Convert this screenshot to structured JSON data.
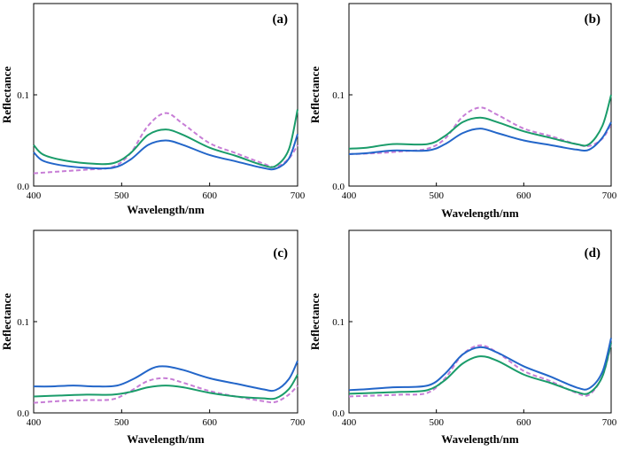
{
  "chart_data": [
    {
      "type": "line",
      "title": "(a)",
      "xlabel": "Wavelength/nm",
      "ylabel": "Reflectance",
      "xlim": [
        400,
        700
      ],
      "ylim": [
        0,
        0.2
      ],
      "xticks": [
        400,
        500,
        600,
        700
      ],
      "yticks": [
        0.0,
        0.1
      ],
      "grid": false,
      "series": [
        {
          "name": "dashed",
          "color": "#c77dd6",
          "dash": true,
          "x": [
            400,
            430,
            460,
            490,
            510,
            530,
            550,
            570,
            600,
            630,
            660,
            675,
            690,
            700
          ],
          "y": [
            0.014,
            0.016,
            0.018,
            0.021,
            0.036,
            0.066,
            0.08,
            0.068,
            0.047,
            0.036,
            0.025,
            0.021,
            0.03,
            0.045
          ]
        },
        {
          "name": "green",
          "color": "#1a9c6a",
          "dash": false,
          "x": [
            400,
            410,
            430,
            460,
            490,
            510,
            530,
            550,
            570,
            600,
            630,
            660,
            675,
            690,
            700
          ],
          "y": [
            0.045,
            0.035,
            0.029,
            0.025,
            0.025,
            0.036,
            0.056,
            0.062,
            0.056,
            0.042,
            0.033,
            0.023,
            0.022,
            0.04,
            0.084
          ]
        },
        {
          "name": "blue",
          "color": "#2366c9",
          "dash": false,
          "x": [
            400,
            410,
            430,
            460,
            490,
            510,
            530,
            550,
            570,
            600,
            630,
            660,
            675,
            690,
            700
          ],
          "y": [
            0.037,
            0.028,
            0.023,
            0.02,
            0.02,
            0.029,
            0.045,
            0.05,
            0.045,
            0.034,
            0.027,
            0.02,
            0.019,
            0.03,
            0.057
          ]
        }
      ]
    },
    {
      "type": "line",
      "title": "(b)",
      "xlabel": "Wavelength/nm",
      "ylabel": "Reflectance",
      "xlim": [
        400,
        700
      ],
      "ylim": [
        0,
        0.2
      ],
      "xticks": [
        400,
        500,
        600,
        700
      ],
      "yticks": [
        0.0,
        0.1
      ],
      "grid": false,
      "series": [
        {
          "name": "dashed",
          "color": "#c77dd6",
          "dash": true,
          "x": [
            400,
            430,
            460,
            490,
            510,
            530,
            550,
            570,
            600,
            630,
            660,
            675,
            690,
            700
          ],
          "y": [
            0.035,
            0.036,
            0.038,
            0.041,
            0.052,
            0.076,
            0.086,
            0.078,
            0.063,
            0.055,
            0.046,
            0.044,
            0.052,
            0.068
          ]
        },
        {
          "name": "green",
          "color": "#1a9c6a",
          "dash": false,
          "x": [
            400,
            420,
            450,
            490,
            510,
            530,
            550,
            570,
            600,
            630,
            660,
            675,
            690,
            700
          ],
          "y": [
            0.041,
            0.042,
            0.046,
            0.046,
            0.055,
            0.07,
            0.075,
            0.07,
            0.06,
            0.053,
            0.046,
            0.046,
            0.066,
            0.1
          ]
        },
        {
          "name": "blue",
          "color": "#2366c9",
          "dash": false,
          "x": [
            400,
            420,
            450,
            490,
            510,
            530,
            550,
            570,
            600,
            630,
            660,
            675,
            690,
            700
          ],
          "y": [
            0.035,
            0.036,
            0.039,
            0.039,
            0.046,
            0.058,
            0.063,
            0.058,
            0.05,
            0.045,
            0.04,
            0.04,
            0.053,
            0.07
          ]
        }
      ]
    },
    {
      "type": "line",
      "title": "(c)",
      "xlabel": "Wavelength/nm",
      "ylabel": "Reflectance",
      "xlim": [
        400,
        700
      ],
      "ylim": [
        0,
        0.2
      ],
      "xticks": [
        400,
        500,
        600,
        700
      ],
      "yticks": [
        0.0,
        0.1
      ],
      "grid": false,
      "series": [
        {
          "name": "dashed",
          "color": "#c77dd6",
          "dash": true,
          "x": [
            400,
            430,
            460,
            490,
            510,
            530,
            550,
            570,
            600,
            630,
            660,
            675,
            690,
            700
          ],
          "y": [
            0.011,
            0.013,
            0.014,
            0.015,
            0.024,
            0.035,
            0.038,
            0.033,
            0.024,
            0.018,
            0.013,
            0.012,
            0.02,
            0.03
          ]
        },
        {
          "name": "green",
          "color": "#1a9c6a",
          "dash": false,
          "x": [
            400,
            430,
            460,
            490,
            510,
            530,
            550,
            570,
            600,
            630,
            660,
            675,
            690,
            700
          ],
          "y": [
            0.018,
            0.019,
            0.02,
            0.02,
            0.023,
            0.028,
            0.03,
            0.028,
            0.022,
            0.018,
            0.016,
            0.016,
            0.026,
            0.042
          ]
        },
        {
          "name": "blue",
          "color": "#2366c9",
          "dash": false,
          "x": [
            400,
            420,
            445,
            470,
            495,
            515,
            535,
            550,
            570,
            600,
            630,
            660,
            675,
            690,
            700
          ],
          "y": [
            0.029,
            0.029,
            0.03,
            0.029,
            0.03,
            0.038,
            0.049,
            0.051,
            0.047,
            0.038,
            0.032,
            0.026,
            0.025,
            0.037,
            0.057
          ]
        }
      ]
    },
    {
      "type": "line",
      "title": "(d)",
      "xlabel": "Wavelength/nm",
      "ylabel": "Reflectance",
      "xlim": [
        400,
        700
      ],
      "ylim": [
        0,
        0.2
      ],
      "xticks": [
        400,
        500,
        600,
        700
      ],
      "yticks": [
        0.0,
        0.1
      ],
      "grid": false,
      "series": [
        {
          "name": "dashed",
          "color": "#c77dd6",
          "dash": true,
          "x": [
            400,
            430,
            460,
            490,
            510,
            530,
            550,
            570,
            600,
            630,
            660,
            675,
            690,
            700
          ],
          "y": [
            0.018,
            0.019,
            0.02,
            0.022,
            0.038,
            0.064,
            0.074,
            0.066,
            0.046,
            0.035,
            0.022,
            0.02,
            0.04,
            0.075
          ]
        },
        {
          "name": "green",
          "color": "#1a9c6a",
          "dash": false,
          "x": [
            400,
            430,
            460,
            490,
            510,
            530,
            550,
            570,
            600,
            630,
            660,
            675,
            690,
            700
          ],
          "y": [
            0.021,
            0.022,
            0.023,
            0.025,
            0.036,
            0.054,
            0.062,
            0.057,
            0.042,
            0.033,
            0.023,
            0.022,
            0.04,
            0.077
          ]
        },
        {
          "name": "blue",
          "color": "#2366c9",
          "dash": false,
          "x": [
            400,
            420,
            450,
            490,
            510,
            530,
            550,
            570,
            600,
            630,
            660,
            675,
            690,
            700
          ],
          "y": [
            0.025,
            0.026,
            0.028,
            0.03,
            0.043,
            0.064,
            0.072,
            0.066,
            0.051,
            0.04,
            0.028,
            0.027,
            0.045,
            0.082
          ]
        }
      ]
    }
  ]
}
